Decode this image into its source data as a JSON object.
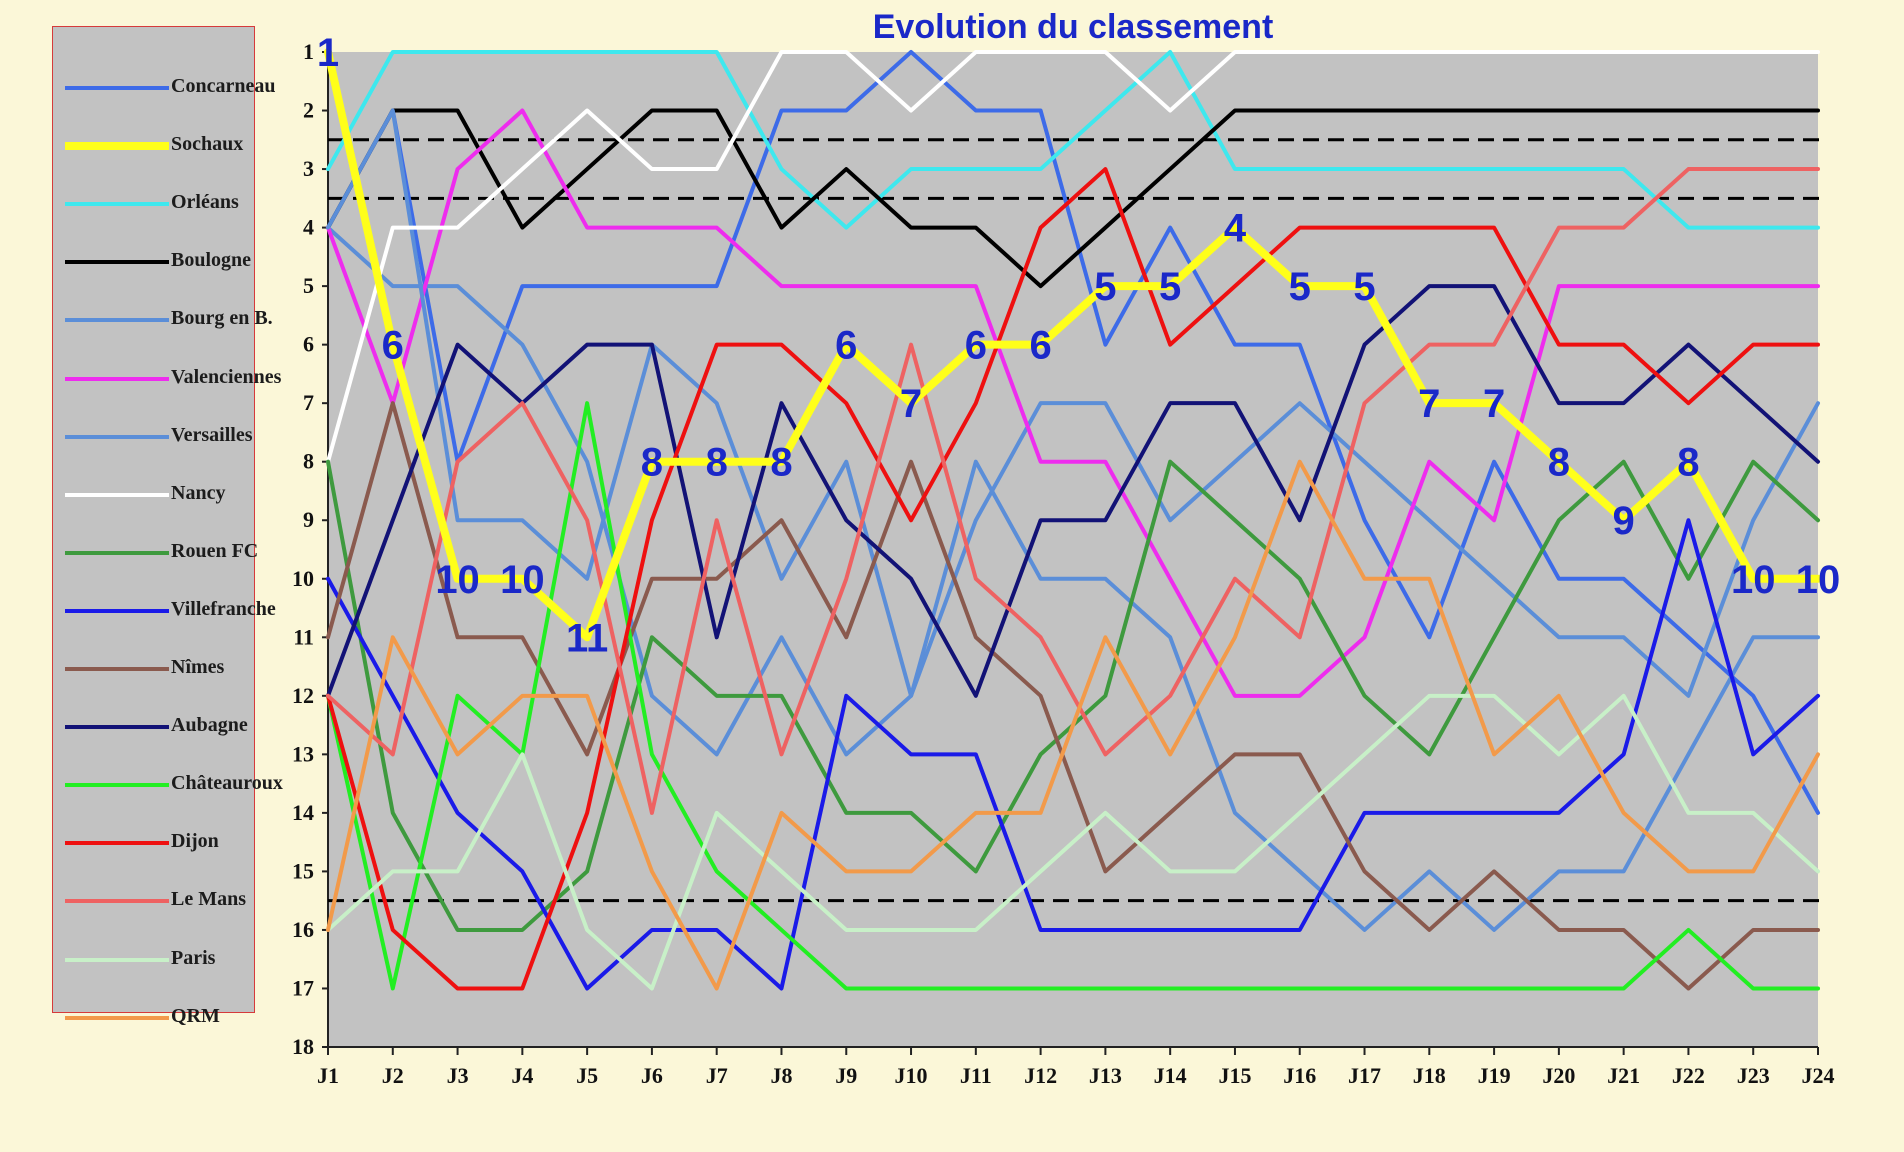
{
  "chart_data": {
    "type": "line",
    "title": "Evolution du classement",
    "xlabel": "",
    "ylabel": "",
    "x": [
      "J1",
      "J2",
      "J3",
      "J4",
      "J5",
      "J6",
      "J7",
      "J8",
      "J9",
      "J10",
      "J11",
      "J12",
      "J13",
      "J14",
      "J15",
      "J16",
      "J17",
      "J18",
      "J19",
      "J20",
      "J21",
      "J22",
      "J23",
      "J24"
    ],
    "yticks": [
      "1",
      "2",
      "3",
      "4",
      "5",
      "6",
      "7",
      "8",
      "9",
      "10",
      "11",
      "12",
      "13",
      "14",
      "15",
      "16",
      "17",
      "18"
    ],
    "ylim": [
      1,
      18
    ],
    "y_inverted": true,
    "grid": false,
    "plot_background": "#c2c2c2",
    "legend_position": "left",
    "reference_lines": [
      2.5,
      3.5,
      15.5
    ],
    "series": [
      {
        "name": "Concarneau",
        "color": "#3d6be8",
        "values": [
          4,
          2,
          8,
          5,
          5,
          5,
          5,
          2,
          2,
          1,
          2,
          2,
          6,
          4,
          6,
          6,
          9,
          11,
          8,
          10,
          10,
          11,
          12,
          14
        ]
      },
      {
        "name": "Sochaux",
        "color": "#ffff1a",
        "width": 8,
        "labeled": true,
        "values": [
          1,
          6,
          10,
          10,
          11,
          8,
          8,
          8,
          6,
          7,
          6,
          6,
          5,
          5,
          4,
          5,
          5,
          7,
          7,
          8,
          9,
          8,
          10,
          10
        ]
      },
      {
        "name": "Orléans",
        "color": "#3ee8ee",
        "values": [
          3,
          1,
          1,
          1,
          1,
          1,
          1,
          3,
          4,
          3,
          3,
          3,
          2,
          1,
          3,
          3,
          3,
          3,
          3,
          3,
          3,
          4,
          4,
          4
        ]
      },
      {
        "name": "Boulogne",
        "color": "#000000",
        "values": [
          4,
          2,
          2,
          4,
          3,
          2,
          2,
          4,
          3,
          4,
          4,
          5,
          4,
          3,
          2,
          2,
          2,
          2,
          2,
          2,
          2,
          2,
          2,
          2
        ]
      },
      {
        "name": "Bourg en B.",
        "color": "#5b8ed8",
        "values": [
          4,
          5,
          5,
          6,
          8,
          12,
          13,
          11,
          13,
          12,
          9,
          7,
          7,
          9,
          8,
          7,
          8,
          9,
          10,
          11,
          11,
          12,
          9,
          7
        ]
      },
      {
        "name": "Valenciennes",
        "color": "#ee2cee",
        "values": [
          4,
          7,
          3,
          2,
          4,
          4,
          4,
          5,
          5,
          5,
          5,
          8,
          8,
          10,
          12,
          12,
          11,
          8,
          9,
          5,
          5,
          5,
          5,
          5
        ]
      },
      {
        "name": "Versailles",
        "color": "#5b8ed8",
        "values": [
          4,
          2,
          9,
          9,
          10,
          6,
          7,
          10,
          8,
          12,
          8,
          10,
          10,
          11,
          14,
          15,
          16,
          15,
          16,
          15,
          15,
          13,
          11,
          11
        ]
      },
      {
        "name": "Nancy",
        "color": "#ffffff",
        "values": [
          8,
          4,
          4,
          3,
          2,
          3,
          3,
          1,
          1,
          2,
          1,
          1,
          1,
          2,
          1,
          1,
          1,
          1,
          1,
          1,
          1,
          1,
          1,
          1
        ]
      },
      {
        "name": "Rouen FC",
        "color": "#3e9a3e",
        "values": [
          8,
          14,
          16,
          16,
          15,
          11,
          12,
          12,
          14,
          14,
          15,
          13,
          12,
          8,
          9,
          10,
          12,
          13,
          11,
          9,
          8,
          10,
          8,
          9
        ]
      },
      {
        "name": "Villefranche",
        "color": "#1a1ae8",
        "values": [
          10,
          12,
          14,
          15,
          17,
          16,
          16,
          17,
          12,
          13,
          13,
          16,
          16,
          16,
          16,
          16,
          14,
          14,
          14,
          14,
          13,
          9,
          13,
          12
        ]
      },
      {
        "name": "Nîmes",
        "color": "#8a5a4e",
        "values": [
          11,
          7,
          11,
          11,
          13,
          10,
          10,
          9,
          11,
          8,
          11,
          12,
          15,
          14,
          13,
          13,
          15,
          16,
          15,
          16,
          16,
          17,
          16,
          16
        ]
      },
      {
        "name": "Aubagne",
        "color": "#121276",
        "values": [
          12,
          9,
          6,
          7,
          6,
          6,
          11,
          7,
          9,
          10,
          12,
          9,
          9,
          7,
          7,
          9,
          6,
          5,
          5,
          7,
          7,
          6,
          7,
          8
        ]
      },
      {
        "name": "Châteauroux",
        "color": "#22ee22",
        "values": [
          12,
          17,
          12,
          13,
          7,
          13,
          15,
          16,
          17,
          17,
          17,
          17,
          17,
          17,
          17,
          17,
          17,
          17,
          17,
          17,
          17,
          16,
          17,
          17
        ]
      },
      {
        "name": "Dijon",
        "color": "#ee1010",
        "values": [
          12,
          16,
          17,
          17,
          14,
          9,
          6,
          6,
          7,
          9,
          7,
          4,
          3,
          6,
          5,
          4,
          4,
          4,
          4,
          6,
          6,
          7,
          6,
          6
        ]
      },
      {
        "name": "Le Mans",
        "color": "#ee6262",
        "values": [
          12,
          13,
          8,
          7,
          9,
          14,
          9,
          13,
          10,
          6,
          10,
          11,
          13,
          12,
          10,
          11,
          7,
          6,
          6,
          4,
          4,
          3,
          3,
          3
        ]
      },
      {
        "name": "Paris",
        "color": "#c8f0c8",
        "values": [
          16,
          15,
          15,
          13,
          16,
          17,
          14,
          15,
          16,
          16,
          16,
          15,
          14,
          15,
          15,
          14,
          13,
          12,
          12,
          13,
          12,
          14,
          14,
          15
        ]
      },
      {
        "name": "QRM",
        "color": "#f29a4a",
        "values": [
          16,
          11,
          13,
          12,
          12,
          15,
          17,
          14,
          15,
          15,
          14,
          14,
          11,
          13,
          11,
          8,
          10,
          10,
          13,
          12,
          14,
          15,
          15,
          13
        ]
      }
    ]
  }
}
